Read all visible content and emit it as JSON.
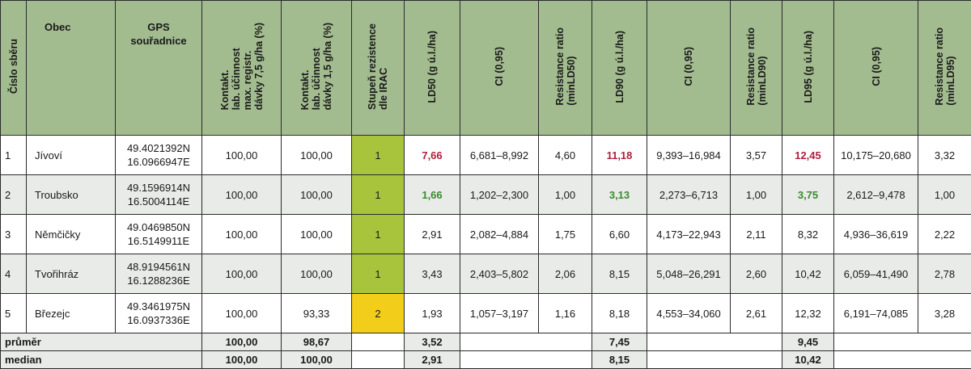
{
  "headers": {
    "cislo": "Číslo sběru",
    "obec": "Obec",
    "gps": "GPS\nsouřadnice",
    "kontakt1": "Kontakt.\nlab. účinnost\nmax. registr.\ndávky 7,5 g/ha (%)",
    "kontakt2": "Kontakt.\nlab. účinnost\ndávky 1,5 g/ha (%)",
    "stupen": "Stupeň rezistence\ndle IRAC",
    "ld50": "LD50 (g ú.l./ha)",
    "ci1": "CI (0,95)",
    "rr50": "Resistance ratio\n(minLD50)",
    "ld90": "LD90 (g ú.l./ha)",
    "ci2": "CI (0,95)",
    "rr90": "Resistance ratio\n(minLD90)",
    "ld95": "LD95 (g ú.l./ha)",
    "ci3": "CI (0,95)",
    "rr95": "Resistance ratio\n(minLD95)"
  },
  "rows": [
    {
      "num": "1",
      "obec": "Jívoví",
      "gps_n": "49.4021392N",
      "gps_e": "16.0966947E",
      "k1": "100,00",
      "k2": "100,00",
      "irac": "1",
      "irac_color": "#a8c33c",
      "ld50": "7,66",
      "ld50_hl": "red",
      "ci1": "6,681–8,992",
      "rr50": "4,60",
      "ld90": "11,18",
      "ld90_hl": "red",
      "ci2": "9,393–16,984",
      "rr90": "3,57",
      "ld95": "12,45",
      "ld95_hl": "red",
      "ci3": "10,175–20,680",
      "rr95": "3,32"
    },
    {
      "num": "2",
      "obec": "Troubsko",
      "gps_n": "49.1596914N",
      "gps_e": "16.5004114E",
      "k1": "100,00",
      "k2": "100,00",
      "irac": "1",
      "irac_color": "#a8c33c",
      "ld50": "1,66",
      "ld50_hl": "green",
      "ci1": "1,202–2,300",
      "rr50": "1,00",
      "ld90": "3,13",
      "ld90_hl": "green",
      "ci2": "2,273–6,713",
      "rr90": "1,00",
      "ld95": "3,75",
      "ld95_hl": "green",
      "ci3": "2,612–9,478",
      "rr95": "1,00"
    },
    {
      "num": "3",
      "obec": "Němčičky",
      "gps_n": "49.0469850N",
      "gps_e": "16.5149911E",
      "k1": "100,00",
      "k2": "100,00",
      "irac": "1",
      "irac_color": "#a8c33c",
      "ld50": "2,91",
      "ld50_hl": "",
      "ci1": "2,082–4,884",
      "rr50": "1,75",
      "ld90": "6,60",
      "ld90_hl": "",
      "ci2": "4,173–22,943",
      "rr90": "2,11",
      "ld95": "8,32",
      "ld95_hl": "",
      "ci3": "4,936–36,619",
      "rr95": "2,22"
    },
    {
      "num": "4",
      "obec": "Tvořihráz",
      "gps_n": "48.9194561N",
      "gps_e": "16.1288236E",
      "k1": "100,00",
      "k2": "100,00",
      "irac": "1",
      "irac_color": "#a8c33c",
      "ld50": "3,43",
      "ld50_hl": "",
      "ci1": "2,403–5,802",
      "rr50": "2,06",
      "ld90": "8,15",
      "ld90_hl": "",
      "ci2": "5,048–26,291",
      "rr90": "2,60",
      "ld95": "10,42",
      "ld95_hl": "",
      "ci3": "6,059–41,490",
      "rr95": "2,78"
    },
    {
      "num": "5",
      "obec": "Březejc",
      "gps_n": "49.3461975N",
      "gps_e": "16.0937336E",
      "k1": "100,00",
      "k2": "93,33",
      "irac": "2",
      "irac_color": "#f2cd1a",
      "ld50": "1,93",
      "ld50_hl": "",
      "ci1": "1,057–3,197",
      "rr50": "1,16",
      "ld90": "8,18",
      "ld90_hl": "",
      "ci2": "4,553–34,060",
      "rr90": "2,61",
      "ld95": "12,32",
      "ld95_hl": "",
      "ci3": "6,191–74,085",
      "rr95": "3,28"
    }
  ],
  "summary": {
    "prumer": {
      "label": "průměr",
      "k1": "100,00",
      "k2": "98,67",
      "ld50": "3,52",
      "ld90": "7,45",
      "ld95": "9,45"
    },
    "median": {
      "label": "median",
      "k1": "100,00",
      "k2": "100,00",
      "ld50": "2,91",
      "ld90": "8,15",
      "ld95": "10,42"
    }
  }
}
